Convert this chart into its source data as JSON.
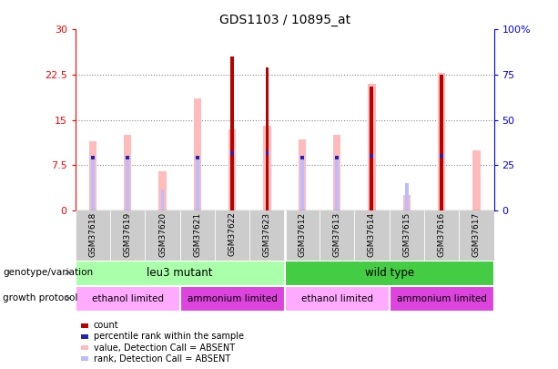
{
  "title": "GDS1103 / 10895_at",
  "samples": [
    "GSM37618",
    "GSM37619",
    "GSM37620",
    "GSM37621",
    "GSM37622",
    "GSM37623",
    "GSM37612",
    "GSM37613",
    "GSM37614",
    "GSM37615",
    "GSM37616",
    "GSM37617"
  ],
  "count_values": [
    0,
    0,
    0,
    0,
    25.5,
    23.7,
    0,
    0,
    20.5,
    0,
    22.5,
    0
  ],
  "percentile_rank": [
    8.8,
    8.8,
    0,
    8.8,
    9.5,
    9.5,
    8.8,
    8.8,
    9.0,
    0,
    9.0,
    0
  ],
  "absent_value": [
    11.5,
    12.5,
    6.5,
    18.5,
    13.5,
    14.0,
    11.8,
    12.5,
    21.0,
    2.5,
    22.8,
    10.0
  ],
  "absent_rank": [
    8.8,
    8.8,
    3.5,
    8.8,
    0,
    0,
    8.8,
    8.8,
    9.0,
    4.5,
    9.0,
    0
  ],
  "ylim": [
    0,
    30
  ],
  "yticks_left": [
    0,
    7.5,
    15,
    22.5,
    30
  ],
  "yticks_right_labels": [
    "0",
    "25",
    "50",
    "75",
    "100%"
  ],
  "color_count": "#bb0000",
  "color_percentile": "#2222bb",
  "color_absent_value": "#ffbbbb",
  "color_absent_rank": "#bbbbff",
  "color_leu3": "#aaffaa",
  "color_wild": "#44cc44",
  "color_ethanol": "#ffaaff",
  "color_ammonium": "#dd44dd",
  "background_color": "#ffffff"
}
